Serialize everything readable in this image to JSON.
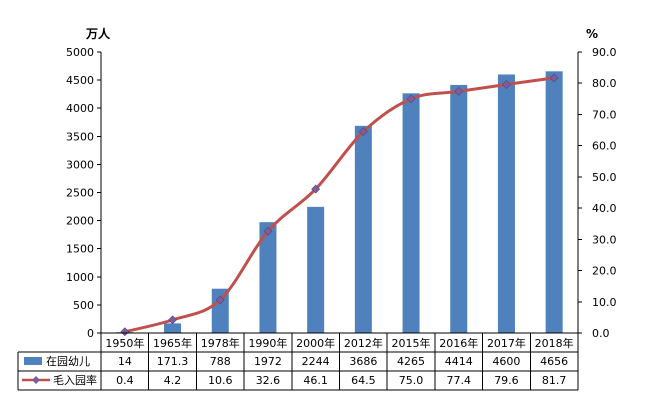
{
  "chart_data": {
    "type": "bar+line",
    "categories": [
      "1950年",
      "1965年",
      "1978年",
      "1990年",
      "2000年",
      "2012年",
      "2015年",
      "2016年",
      "2017年",
      "2018年"
    ],
    "series": [
      {
        "name": "在园幼儿",
        "type": "bar",
        "axis": "left",
        "color": "#4F81BD",
        "values": [
          14,
          171.3,
          788,
          1972,
          2244,
          3686,
          4265,
          4414,
          4600,
          4656
        ],
        "labels": [
          "14",
          "171.3",
          "788",
          "1972",
          "2244",
          "3686",
          "4265",
          "4414",
          "4600",
          "4656"
        ]
      },
      {
        "name": "毛入园率",
        "type": "line",
        "axis": "right",
        "color": "#C0504D",
        "marker_color": "#7B5E9B",
        "values": [
          0.4,
          4.2,
          10.6,
          32.6,
          46.1,
          64.5,
          75.0,
          77.4,
          79.6,
          81.7
        ],
        "labels": [
          "0.4",
          "4.2",
          "10.6",
          "32.6",
          "46.1",
          "64.5",
          "75.0",
          "77.4",
          "79.6",
          "81.7"
        ]
      }
    ],
    "y_left": {
      "unit": "万人",
      "ylim": [
        0,
        5000
      ],
      "ticks": [
        "0",
        "500",
        "1000",
        "1500",
        "2000",
        "2500",
        "3000",
        "3500",
        "4000",
        "4500",
        "5000"
      ]
    },
    "y_right": {
      "unit": "%",
      "ylim": [
        0,
        90
      ],
      "ticks": [
        "0.0",
        "10.0",
        "20.0",
        "30.0",
        "40.0",
        "50.0",
        "60.0",
        "70.0",
        "80.0",
        "90.0"
      ]
    },
    "grid": false,
    "legend": "data-table-below"
  }
}
